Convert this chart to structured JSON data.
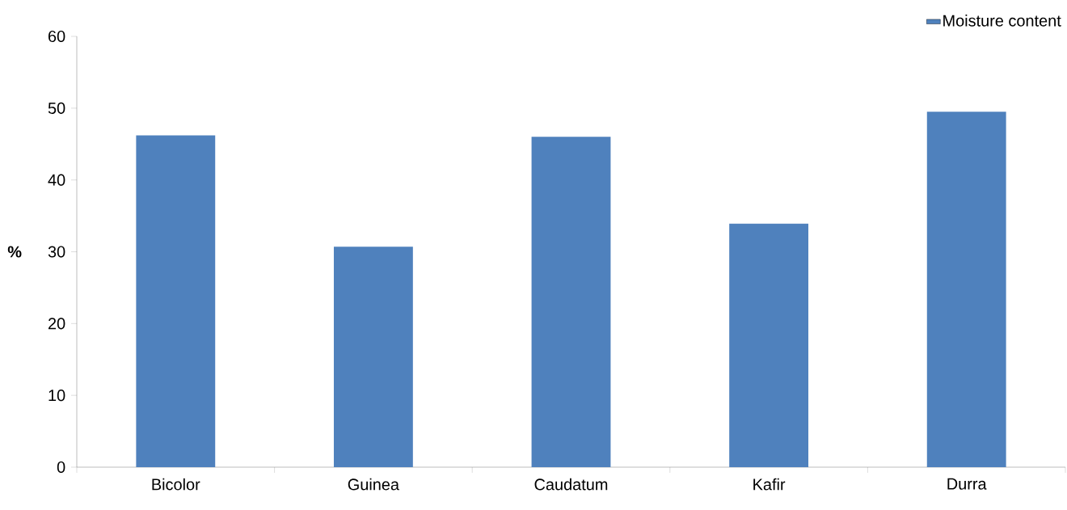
{
  "chart_data": {
    "type": "bar",
    "ylabel": "%",
    "categories": [
      "Bicolor",
      "Guinea",
      "Caudatum",
      "Kafir",
      "Durra"
    ],
    "series": [
      {
        "name": "Moisture content",
        "color": "#4f81bd",
        "values": [
          46.2,
          30.7,
          46.0,
          33.9,
          49.5
        ]
      }
    ],
    "ylim": [
      0,
      60
    ],
    "yticks": [
      0,
      10,
      20,
      30,
      40,
      50,
      60
    ],
    "legend": "top right",
    "grid": false
  }
}
